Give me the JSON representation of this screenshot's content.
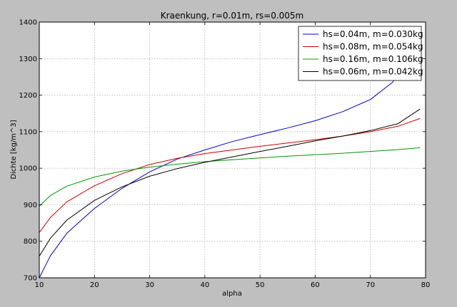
{
  "chart_data": {
    "type": "line",
    "title": "Kraenkung, r=0.01m, rs=0.005m",
    "xlabel": "alpha",
    "ylabel": "Dichte [kg/m^3]",
    "xlim": [
      10,
      80
    ],
    "ylim": [
      700,
      1400
    ],
    "xticks": [
      10,
      20,
      30,
      40,
      50,
      60,
      70,
      80
    ],
    "yticks": [
      700,
      800,
      900,
      1000,
      1100,
      1200,
      1300,
      1400
    ],
    "grid": true,
    "legend_position": "top-right",
    "series": [
      {
        "name": "hs=0.04m, m=0.030kg",
        "color": "#0000cc",
        "x": [
          10,
          12,
          15,
          20,
          25,
          30,
          35,
          40,
          45,
          50,
          55,
          60,
          65,
          70,
          74,
          77,
          79
        ],
        "y": [
          700,
          760,
          822,
          890,
          945,
          990,
          1025,
          1050,
          1073,
          1092,
          1110,
          1130,
          1155,
          1188,
          1235,
          1300,
          1347
        ]
      },
      {
        "name": "hs=0.08m, m=0.054kg",
        "color": "#cc0000",
        "x": [
          10,
          12,
          15,
          20,
          25,
          30,
          35,
          40,
          45,
          50,
          55,
          60,
          65,
          70,
          75,
          79
        ],
        "y": [
          824,
          865,
          908,
          952,
          985,
          1010,
          1027,
          1040,
          1050,
          1060,
          1069,
          1078,
          1088,
          1100,
          1115,
          1136
        ]
      },
      {
        "name": "hs=0.16m, m=0.106kg",
        "color": "#009900",
        "x": [
          10,
          12,
          15,
          20,
          25,
          30,
          35,
          40,
          45,
          50,
          55,
          60,
          65,
          70,
          75,
          79
        ],
        "y": [
          896,
          925,
          951,
          976,
          992,
          1003,
          1011,
          1018,
          1023,
          1028,
          1033,
          1037,
          1041,
          1046,
          1051,
          1056
        ]
      },
      {
        "name": "hs=0.06m, m=0.042kg",
        "color": "#000000",
        "x": [
          10,
          12,
          15,
          20,
          25,
          30,
          35,
          40,
          45,
          50,
          55,
          60,
          65,
          70,
          75,
          79
        ],
        "y": [
          759,
          808,
          858,
          912,
          949,
          978,
          999,
          1016,
          1031,
          1046,
          1060,
          1075,
          1088,
          1103,
          1122,
          1162
        ]
      }
    ]
  }
}
